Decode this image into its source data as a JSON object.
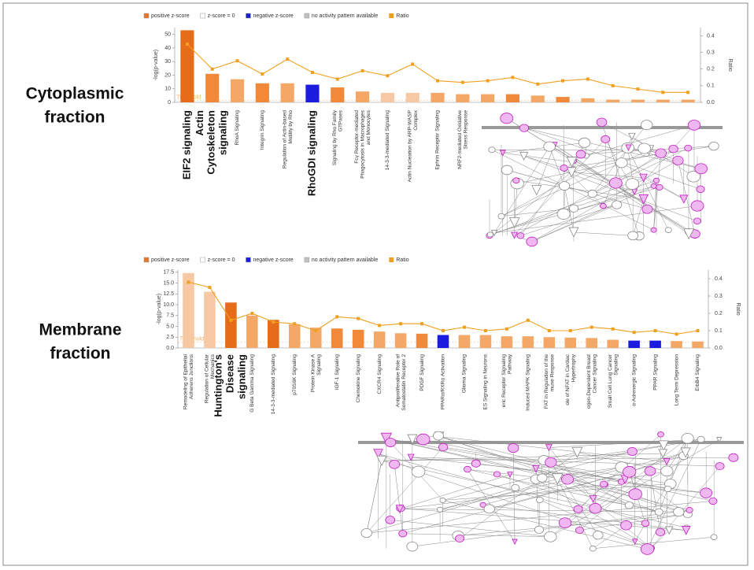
{
  "side_labels": [
    "Cytoplasmic",
    "fraction",
    "Membrane",
    "fraction"
  ],
  "chart_data": [
    {
      "type": "bar",
      "y_label": "-log(p-value)",
      "y2_label": "Ratio",
      "legend": [
        {
          "label": "positive z-score",
          "color": "#e8742a"
        },
        {
          "label": "z-score = 0",
          "color": "#ffffff"
        },
        {
          "label": "negative z-score",
          "color": "#1c1ce0"
        },
        {
          "label": "no activity pattern available",
          "color": "#c0c0c0"
        }
      ],
      "threshold": 1.3,
      "threshold_label": "Threshold",
      "categories": [
        "EIF2 signaling",
        "Actin Cytoskeleton signaling",
        "RhoA Signaling",
        "Integrin Signaling",
        "Regulation of Actin-based Motility by Rho",
        "RhoGDI signaling",
        "Signaling by Rho Family GTPases",
        "Fcγ Receptor-mediated Phagocytosis in Macrophages and Monocytes",
        "14-3-3-mediated Signaling",
        "Actin Nucleation by ARP-WASP Complex",
        "Ephrin Receptor Signaling",
        "NRF2-mediated Oxidative Stress Response",
        null,
        null,
        null,
        null,
        null,
        null,
        null,
        null,
        null
      ],
      "bold_labels": [
        0,
        1,
        5
      ],
      "values": [
        53,
        21,
        17,
        14,
        14,
        13,
        11,
        8,
        7,
        7,
        7,
        6,
        6,
        6,
        5,
        4,
        3,
        2,
        2,
        2,
        2
      ],
      "colors": [
        "#e46c1a",
        "#f08a3a",
        "#f4a868",
        "#f08a3a",
        "#f4a868",
        "#1c1ce0",
        "#f08a3a",
        "#f4a868",
        "#f7c8a4",
        "#f7c8a4",
        "#f4a868",
        "#f4a868",
        "#f4a868",
        "#f08a3a",
        "#f4a868",
        "#f08a3a",
        "#f4a868",
        "#f4a868",
        "#f4a868",
        "#f4a868",
        "#f4a868"
      ],
      "series": [
        {
          "name": "Ratio",
          "color": "#f0a020",
          "axis": "y2",
          "values": [
            0.35,
            0.2,
            0.25,
            0.17,
            0.26,
            0.18,
            0.14,
            0.19,
            0.16,
            0.23,
            0.13,
            0.12,
            0.13,
            0.15,
            0.11,
            0.13,
            0.14,
            0.1,
            0.08,
            0.06,
            0.06
          ]
        }
      ],
      "ylim": [
        0,
        55
      ],
      "yticks": [
        0,
        10,
        20,
        30,
        40,
        50
      ],
      "y2lim": [
        0,
        0.45
      ],
      "y2ticks": [
        {
          "value": 0,
          "label": "0.0"
        },
        0.1,
        0.2,
        0.3,
        0.4
      ]
    },
    {
      "type": "bar",
      "y_label": "-log(p-value)",
      "y2_label": "Ratio",
      "legend": [
        {
          "label": "positive z-score",
          "color": "#e8742a"
        },
        {
          "label": "z-score = 0",
          "color": "#ffffff"
        },
        {
          "label": "negative z-score",
          "color": "#1c1ce0"
        },
        {
          "label": "no activity pattern available",
          "color": "#c0c0c0"
        }
      ],
      "threshold": 1.3,
      "threshold_label": "Threshold",
      "categories": [
        "Remodeling of Epithelial Adherens Junctions",
        "Regulation of Cellular Mechanics",
        "Huntington's Disease signaling",
        "G Beta Gamma Signaling",
        "14-3-3-mediated Signaling",
        "p70S6K Signaling",
        "Protein Kinase A Signaling",
        "IGF-1 Signaling",
        "Chemokine Signaling",
        "CXCR4 Signaling",
        "Antiproliferative Role of Somatostatin Receptor 2",
        "PDGF Signaling",
        "PPARα/RXRα Activation",
        "Glioma Signaling",
        "ES Signaling in Neurons",
        "eric Receptor Signaling Pathway",
        "Induced MAPK Signaling",
        "FAT in Regulation of the mune Response",
        "ole of NFAT in Cardiac Hypertrophy",
        "ogen-Dependent Breast Cancer Signaling",
        "Small Cell Lung Cancer Signaling",
        "α-Adrenergic Signaling",
        "PPAR Signaling",
        "Long Term Depression",
        "ErbB4 Signaling"
      ],
      "bold_labels": [
        2
      ],
      "values": [
        17.3,
        13,
        10.5,
        7.5,
        6.5,
        5.5,
        4.7,
        4.5,
        4.2,
        3.8,
        3.4,
        3.3,
        3,
        3,
        3,
        2.7,
        2.7,
        2.5,
        2.4,
        2.3,
        1.9,
        1.7,
        1.7,
        1.6,
        1.5
      ],
      "colors": [
        "#f7c8a4",
        "#f7c8a4",
        "#e46c1a",
        "#f4a868",
        "#e46c1a",
        "#f4a868",
        "#f4a868",
        "#f08a3a",
        "#f08a3a",
        "#f4a868",
        "#f4a868",
        "#f08a3a",
        "#1c1ce0",
        "#f4a868",
        "#f4a868",
        "#f4a868",
        "#f4a868",
        "#f4a868",
        "#f4a868",
        "#f4a868",
        "#f4a868",
        "#1c1ce0",
        "#1c1ce0",
        "#f4a868",
        "#f4a868"
      ],
      "series": [
        {
          "name": "Ratio",
          "color": "#f0a020",
          "axis": "y2",
          "values": [
            0.38,
            0.35,
            0.16,
            0.2,
            0.15,
            0.14,
            0.1,
            0.18,
            0.17,
            0.13,
            0.14,
            0.14,
            0.1,
            0.12,
            0.1,
            0.11,
            0.16,
            0.1,
            0.1,
            0.12,
            0.11,
            0.09,
            0.1,
            0.08,
            0.1
          ]
        }
      ],
      "ylim": [
        0,
        18
      ],
      "yticks": [
        {
          "value": 0,
          "label": "0.0"
        },
        2.5,
        {
          "value": 5,
          "label": "5.0"
        },
        7.5,
        {
          "value": 10,
          "label": "10.0"
        },
        12.5,
        {
          "value": 15,
          "label": "15.0"
        },
        17.5
      ],
      "y2lim": [
        0,
        0.45
      ],
      "y2ticks": [
        {
          "value": 0,
          "label": "0.0"
        },
        0.1,
        0.2,
        0.3,
        0.4
      ]
    }
  ]
}
